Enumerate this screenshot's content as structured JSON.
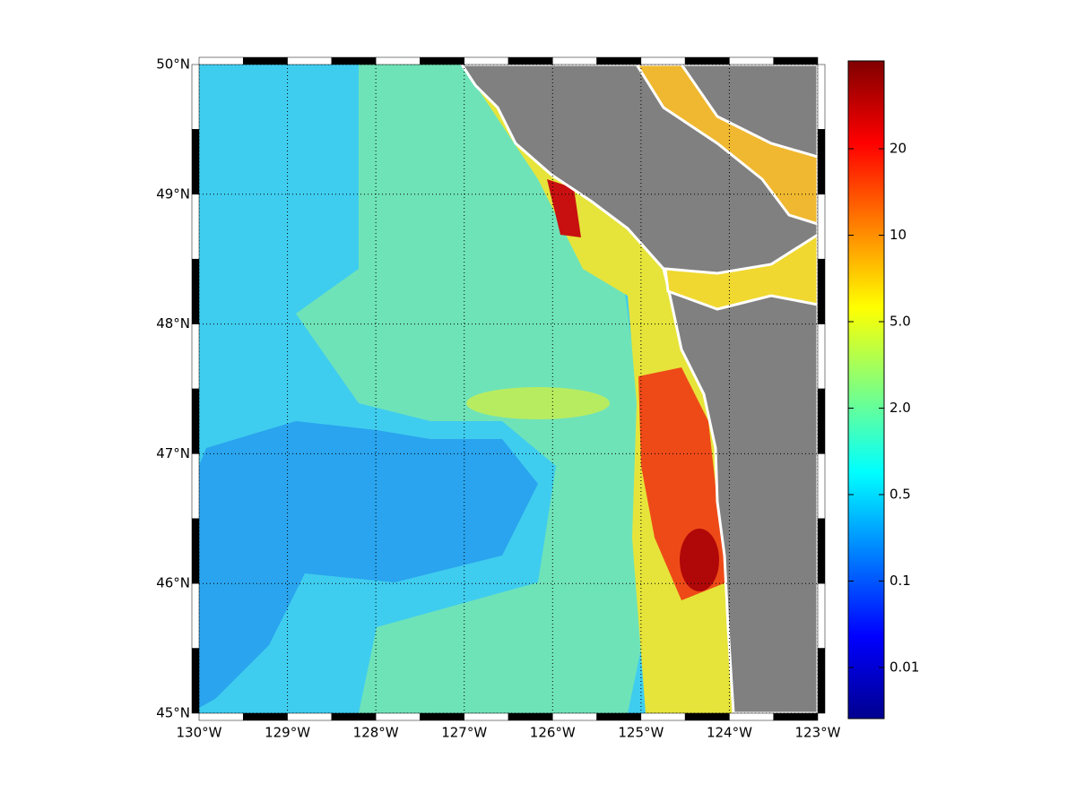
{
  "map": {
    "xlim": [
      -130,
      -123
    ],
    "ylim": [
      45,
      50
    ],
    "xticks": [
      {
        "value": -130,
        "label": "130°W"
      },
      {
        "value": -129,
        "label": "129°W"
      },
      {
        "value": -128,
        "label": "128°W"
      },
      {
        "value": -127,
        "label": "127°W"
      },
      {
        "value": -126,
        "label": "126°W"
      },
      {
        "value": -125,
        "label": "125°W"
      },
      {
        "value": -124,
        "label": "124°W"
      },
      {
        "value": -123,
        "label": "123°W"
      }
    ],
    "yticks": [
      {
        "value": 45,
        "label": "45°N"
      },
      {
        "value": 46,
        "label": "46°N"
      },
      {
        "value": 47,
        "label": "47°N"
      },
      {
        "value": 48,
        "label": "48°N"
      },
      {
        "value": 49,
        "label": "49°N"
      },
      {
        "value": 50,
        "label": "50°N"
      }
    ],
    "grid": true
  },
  "colorbar": {
    "ticks": [
      {
        "value": 0.01,
        "label": "0.01"
      },
      0.1,
      0.5,
      {
        "value": 2,
        "label": "2.0"
      },
      {
        "value": 5,
        "label": "5.0"
      },
      10,
      20
    ]
  }
}
